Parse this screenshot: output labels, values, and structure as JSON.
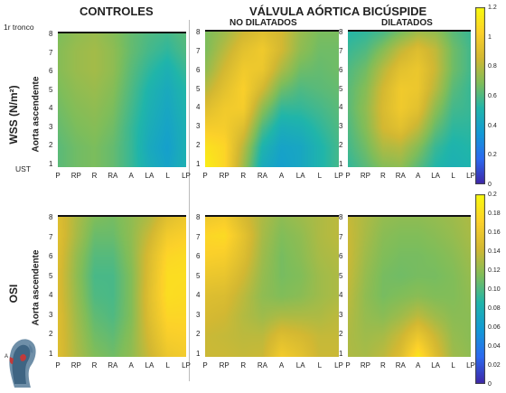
{
  "headers": {
    "controls": "CONTROLES",
    "bicuspid": "VÁLVULA AÓRTICA BICÚSPIDE",
    "non_dilated": "NO DILATADOS",
    "dilated": "DILATADOS"
  },
  "rows": {
    "wss_label": "WSS (N/m²)",
    "osi_label": "OSI",
    "axis_label": "Aorta ascendente",
    "top_marker": "1r tronco",
    "bottom_marker": "UST"
  },
  "colors": {
    "colormap": [
      "#3e26a8",
      "#2c6af0",
      "#129ad6",
      "#20b5aa",
      "#7fbd5a",
      "#d3b832",
      "#fcd12a",
      "#f8fa0d"
    ]
  },
  "chart_data": [
    {
      "type": "heatmap",
      "name": "wss-controles",
      "metric": "WSS",
      "group": "CONTROLES",
      "x": [
        "P",
        "RP",
        "R",
        "RA",
        "A",
        "LA",
        "L",
        "LP"
      ],
      "y": [
        1,
        2,
        3,
        4,
        5,
        6,
        7,
        8
      ],
      "value_range": [
        0,
        1.2
      ],
      "z": [
        [
          0.62,
          0.66,
          0.68,
          0.64,
          0.56,
          0.46,
          0.4,
          0.48
        ],
        [
          0.62,
          0.66,
          0.68,
          0.64,
          0.56,
          0.44,
          0.38,
          0.48
        ],
        [
          0.64,
          0.68,
          0.7,
          0.66,
          0.56,
          0.46,
          0.4,
          0.48
        ],
        [
          0.66,
          0.7,
          0.72,
          0.68,
          0.58,
          0.48,
          0.42,
          0.5
        ],
        [
          0.68,
          0.72,
          0.74,
          0.7,
          0.6,
          0.5,
          0.44,
          0.52
        ],
        [
          0.7,
          0.74,
          0.76,
          0.72,
          0.62,
          0.54,
          0.48,
          0.56
        ],
        [
          0.7,
          0.74,
          0.76,
          0.72,
          0.64,
          0.58,
          0.54,
          0.6
        ],
        [
          0.68,
          0.72,
          0.74,
          0.7,
          0.64,
          0.6,
          0.58,
          0.62
        ]
      ]
    },
    {
      "type": "heatmap",
      "name": "wss-no-dilatados",
      "metric": "WSS",
      "group": "NO DILATADOS",
      "x": [
        "P",
        "RP",
        "R",
        "RA",
        "A",
        "LA",
        "L",
        "LP"
      ],
      "y": [
        1,
        2,
        3,
        4,
        5,
        6,
        7,
        8
      ],
      "value_range": [
        0,
        1.2
      ],
      "z": [
        [
          1.15,
          1.05,
          0.75,
          0.45,
          0.38,
          0.42,
          0.5,
          0.58
        ],
        [
          1.1,
          1.05,
          0.8,
          0.5,
          0.4,
          0.42,
          0.5,
          0.58
        ],
        [
          1.0,
          1.0,
          0.9,
          0.6,
          0.46,
          0.48,
          0.54,
          0.6
        ],
        [
          0.9,
          0.98,
          1.0,
          0.72,
          0.55,
          0.55,
          0.58,
          0.62
        ],
        [
          0.8,
          0.92,
          1.02,
          0.86,
          0.66,
          0.6,
          0.62,
          0.64
        ],
        [
          0.72,
          0.86,
          0.98,
          0.96,
          0.78,
          0.66,
          0.64,
          0.66
        ],
        [
          0.68,
          0.8,
          0.92,
          0.98,
          0.86,
          0.72,
          0.66,
          0.66
        ],
        [
          0.68,
          0.74,
          0.84,
          0.9,
          0.86,
          0.74,
          0.68,
          0.68
        ]
      ]
    },
    {
      "type": "heatmap",
      "name": "wss-dilatados",
      "metric": "WSS",
      "group": "DILATADOS",
      "x": [
        "P",
        "RP",
        "R",
        "RA",
        "A",
        "LA",
        "L",
        "LP"
      ],
      "y": [
        1,
        2,
        3,
        4,
        5,
        6,
        7,
        8
      ],
      "value_range": [
        0,
        1.2
      ],
      "z": [
        [
          0.55,
          0.62,
          0.7,
          0.72,
          0.62,
          0.52,
          0.48,
          0.5
        ],
        [
          0.58,
          0.66,
          0.78,
          0.8,
          0.7,
          0.56,
          0.5,
          0.52
        ],
        [
          0.6,
          0.7,
          0.86,
          0.92,
          0.82,
          0.64,
          0.54,
          0.54
        ],
        [
          0.62,
          0.72,
          0.88,
          0.98,
          0.92,
          0.72,
          0.58,
          0.56
        ],
        [
          0.62,
          0.7,
          0.86,
          0.98,
          0.96,
          0.8,
          0.62,
          0.56
        ],
        [
          0.6,
          0.66,
          0.8,
          0.92,
          0.96,
          0.84,
          0.66,
          0.58
        ],
        [
          0.56,
          0.6,
          0.7,
          0.82,
          0.9,
          0.82,
          0.66,
          0.58
        ],
        [
          0.52,
          0.54,
          0.58,
          0.66,
          0.74,
          0.72,
          0.62,
          0.56
        ]
      ]
    },
    {
      "type": "heatmap",
      "name": "osi-controles",
      "metric": "OSI",
      "group": "CONTROLES",
      "x": [
        "P",
        "RP",
        "R",
        "RA",
        "A",
        "LA",
        "L",
        "LP"
      ],
      "y": [
        1,
        2,
        3,
        4,
        5,
        6,
        7,
        8
      ],
      "value_range": [
        0,
        0.2
      ],
      "z": [
        [
          0.15,
          0.13,
          0.115,
          0.11,
          0.12,
          0.14,
          0.16,
          0.165
        ],
        [
          0.15,
          0.128,
          0.11,
          0.105,
          0.118,
          0.145,
          0.168,
          0.17
        ],
        [
          0.15,
          0.125,
          0.105,
          0.1,
          0.115,
          0.15,
          0.175,
          0.175
        ],
        [
          0.148,
          0.122,
          0.1,
          0.098,
          0.115,
          0.152,
          0.18,
          0.178
        ],
        [
          0.148,
          0.12,
          0.098,
          0.098,
          0.115,
          0.15,
          0.18,
          0.18
        ],
        [
          0.15,
          0.122,
          0.102,
          0.102,
          0.118,
          0.148,
          0.175,
          0.178
        ],
        [
          0.152,
          0.128,
          0.108,
          0.108,
          0.12,
          0.14,
          0.165,
          0.17
        ],
        [
          0.15,
          0.13,
          0.115,
          0.112,
          0.12,
          0.13,
          0.15,
          0.16
        ]
      ]
    },
    {
      "type": "heatmap",
      "name": "osi-no-dilatados",
      "metric": "OSI",
      "group": "NO DILATADOS",
      "x": [
        "P",
        "RP",
        "R",
        "RA",
        "A",
        "LA",
        "L",
        "LP"
      ],
      "y": [
        1,
        2,
        3,
        4,
        5,
        6,
        7,
        8
      ],
      "value_range": [
        0,
        0.2
      ],
      "z": [
        [
          0.14,
          0.14,
          0.138,
          0.14,
          0.165,
          0.155,
          0.14,
          0.14
        ],
        [
          0.14,
          0.138,
          0.135,
          0.135,
          0.15,
          0.145,
          0.138,
          0.138
        ],
        [
          0.145,
          0.142,
          0.132,
          0.125,
          0.13,
          0.13,
          0.13,
          0.135
        ],
        [
          0.15,
          0.148,
          0.135,
          0.12,
          0.115,
          0.118,
          0.125,
          0.13
        ],
        [
          0.16,
          0.158,
          0.142,
          0.122,
          0.112,
          0.115,
          0.125,
          0.13
        ],
        [
          0.17,
          0.168,
          0.15,
          0.125,
          0.112,
          0.118,
          0.128,
          0.132
        ],
        [
          0.175,
          0.178,
          0.155,
          0.128,
          0.115,
          0.12,
          0.13,
          0.135
        ],
        [
          0.16,
          0.165,
          0.145,
          0.13,
          0.12,
          0.125,
          0.13,
          0.135
        ]
      ]
    },
    {
      "type": "heatmap",
      "name": "osi-dilatados",
      "metric": "OSI",
      "group": "DILATADOS",
      "x": [
        "P",
        "RP",
        "R",
        "RA",
        "A",
        "LA",
        "L",
        "LP"
      ],
      "y": [
        1,
        2,
        3,
        4,
        5,
        6,
        7,
        8
      ],
      "value_range": [
        0,
        0.2
      ],
      "z": [
        [
          0.13,
          0.128,
          0.135,
          0.15,
          0.185,
          0.15,
          0.125,
          0.12
        ],
        [
          0.13,
          0.125,
          0.128,
          0.14,
          0.16,
          0.14,
          0.122,
          0.118
        ],
        [
          0.132,
          0.122,
          0.118,
          0.125,
          0.135,
          0.125,
          0.118,
          0.118
        ],
        [
          0.135,
          0.12,
          0.112,
          0.115,
          0.118,
          0.115,
          0.115,
          0.12
        ],
        [
          0.138,
          0.122,
          0.112,
          0.11,
          0.112,
          0.112,
          0.115,
          0.122
        ],
        [
          0.14,
          0.125,
          0.115,
          0.112,
          0.112,
          0.114,
          0.118,
          0.125
        ],
        [
          0.14,
          0.128,
          0.118,
          0.115,
          0.115,
          0.118,
          0.122,
          0.128
        ],
        [
          0.138,
          0.13,
          0.122,
          0.12,
          0.12,
          0.122,
          0.125,
          0.13
        ]
      ]
    },
    {
      "type": "colorbar",
      "name": "wss-colorbar",
      "ticks": [
        0,
        0.2,
        0.4,
        0.6,
        0.8,
        1,
        1.2
      ],
      "tick_labels": [
        "0",
        "0.2",
        "0.4",
        "0.6",
        "0.8",
        "1",
        "1.2"
      ],
      "range": [
        0,
        1.2
      ]
    },
    {
      "type": "colorbar",
      "name": "osi-colorbar",
      "ticks": [
        0,
        0.02,
        0.04,
        0.06,
        0.08,
        0.1,
        0.12,
        0.14,
        0.16,
        0.18,
        0.2
      ],
      "tick_labels": [
        "0",
        "0.02",
        "0.04",
        "0.06",
        "0.08",
        "0.10",
        "0.12",
        "0.14",
        "0.16",
        "0.18",
        "0.2"
      ],
      "range": [
        0,
        0.2
      ]
    }
  ]
}
